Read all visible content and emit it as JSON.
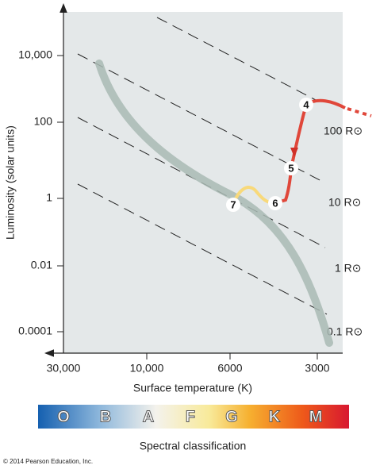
{
  "axes": {
    "y_label": "Luminosity (solar units)",
    "x_label": "Surface temperature (K)",
    "y_ticks": [
      "10,000",
      "100",
      "1",
      "0.01",
      "0.0001"
    ],
    "x_ticks": [
      "30,000",
      "10,000",
      "6000",
      "3000"
    ]
  },
  "radius_lines": [
    "100 R⊙",
    "10 R⊙",
    "1 R⊙",
    "0.1 R⊙"
  ],
  "stages": [
    "4",
    "5",
    "6",
    "7"
  ],
  "spectral": {
    "title": "Spectral classification",
    "classes": [
      "O",
      "B",
      "A",
      "F",
      "G",
      "K",
      "M"
    ]
  },
  "copyright": "© 2014 Pearson Education, Inc."
}
